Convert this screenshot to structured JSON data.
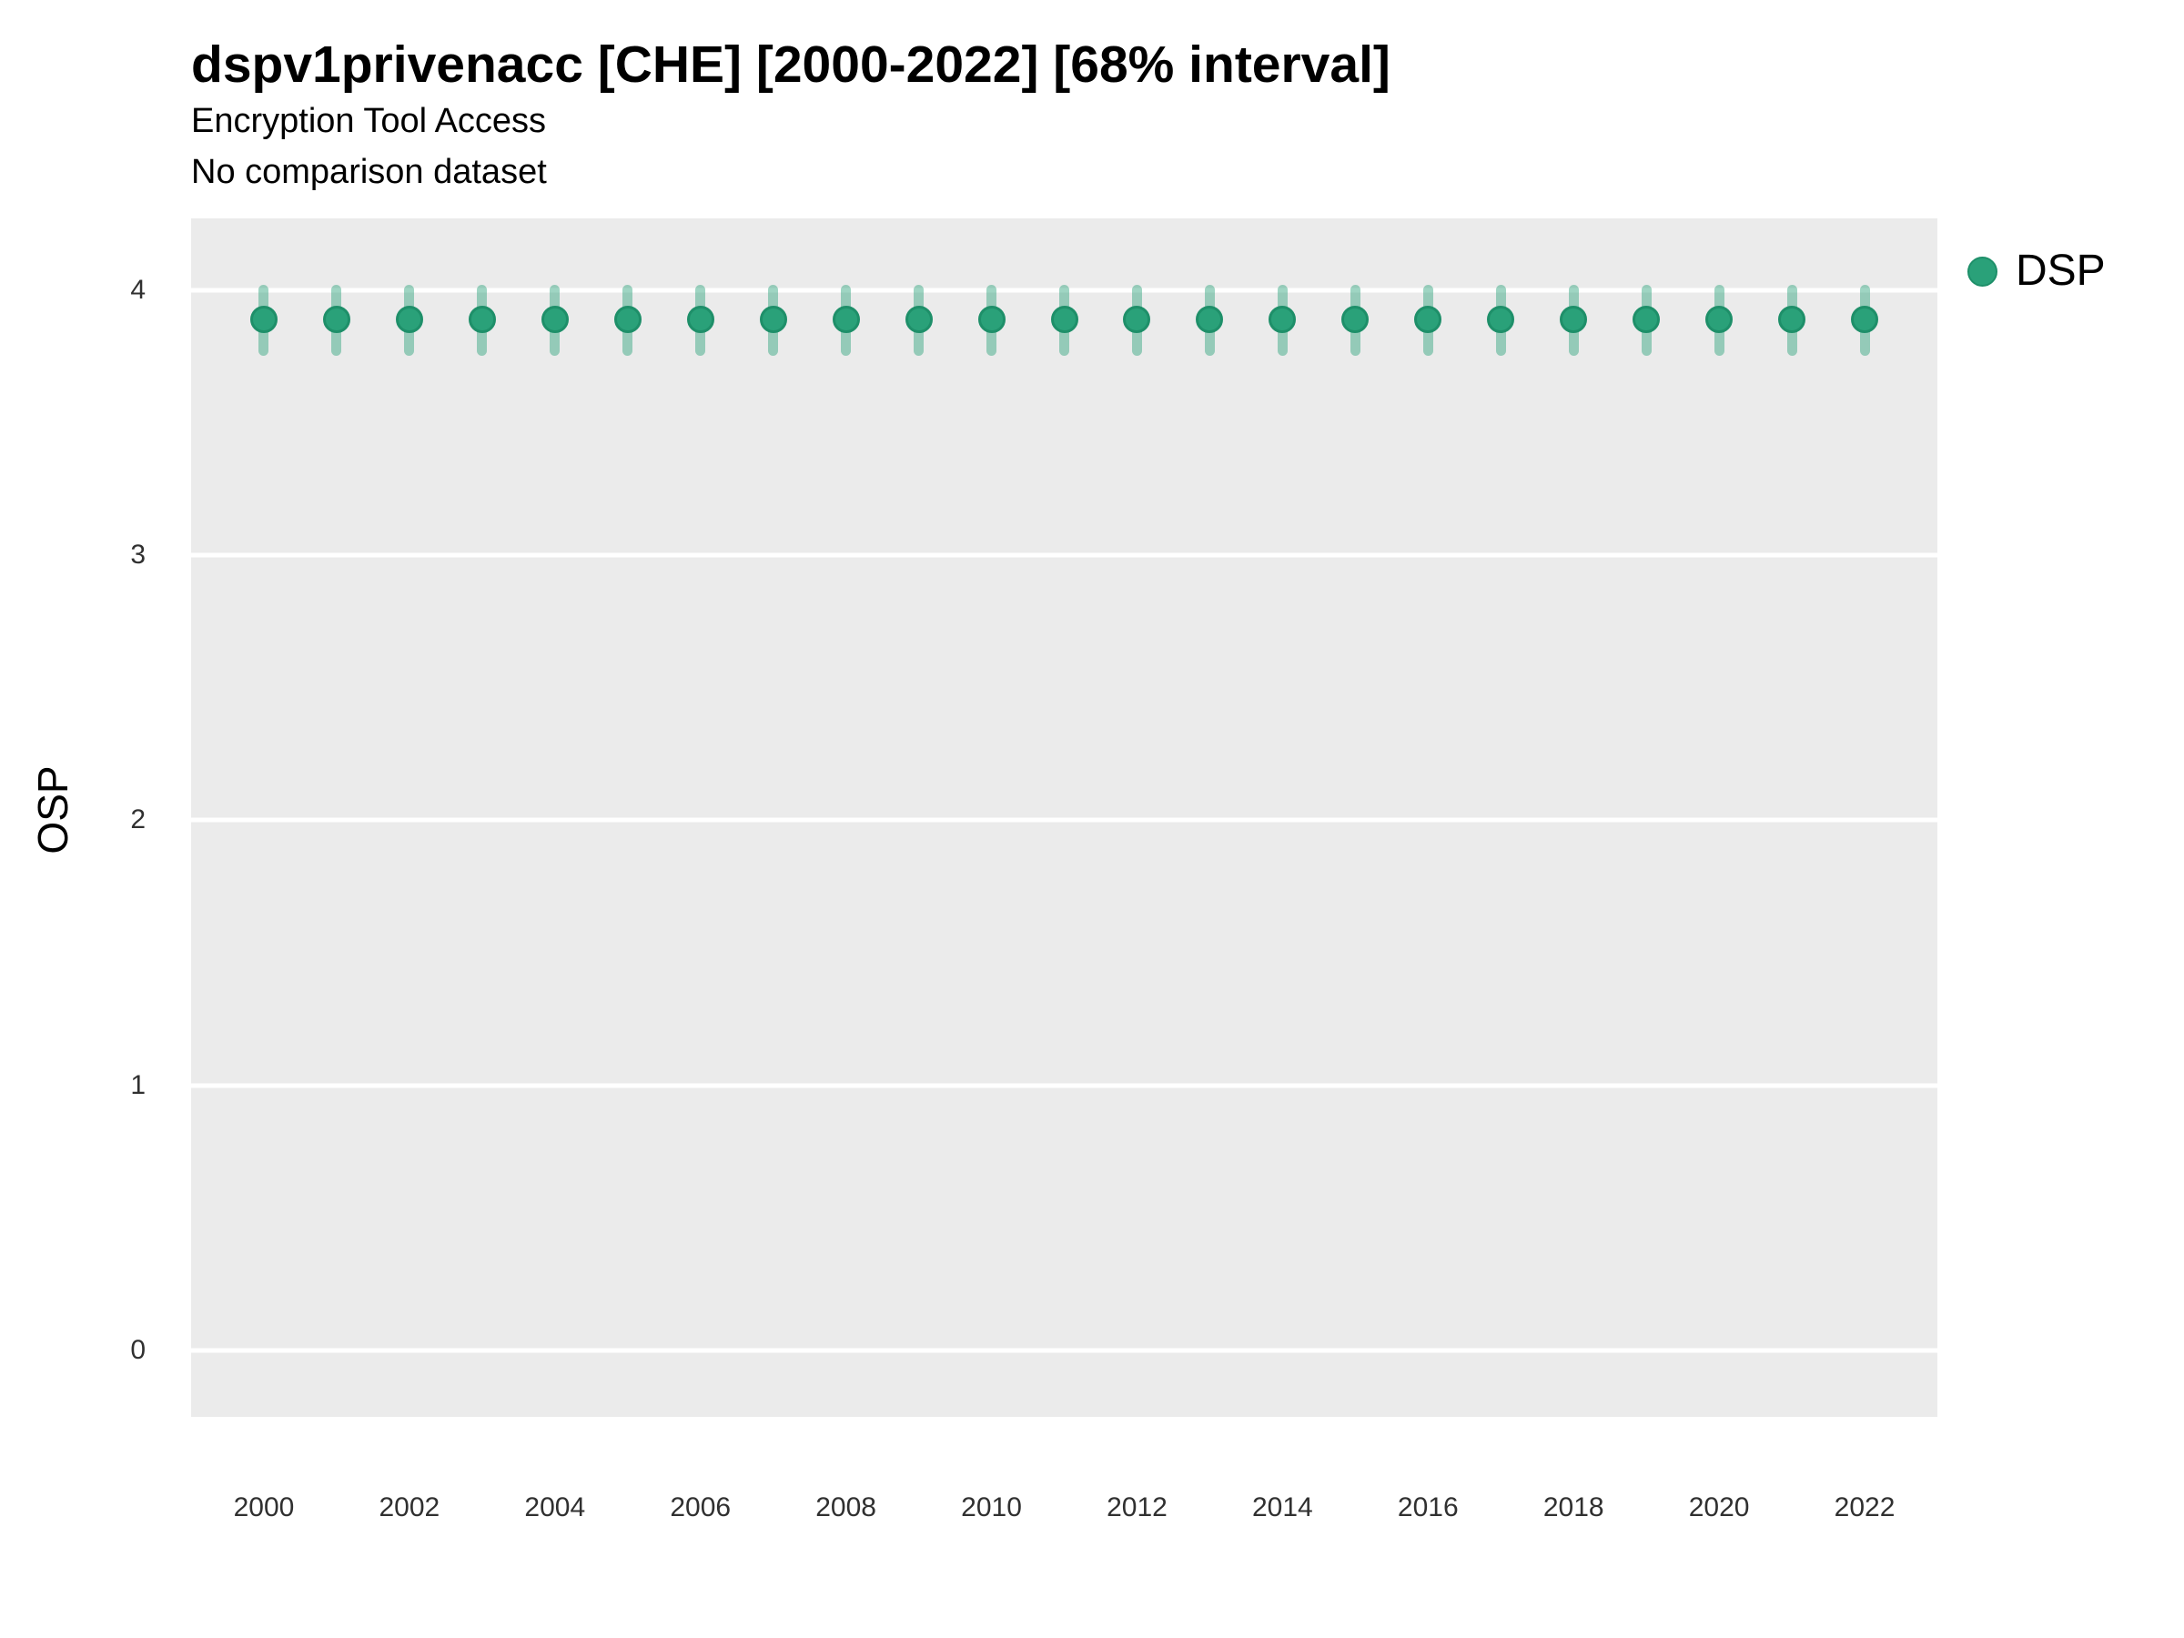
{
  "header": {
    "title": "dspv1privenacc [CHE] [2000-2022] [68% interval]",
    "subtitle": "Encryption Tool Access",
    "caption": "No comparison dataset"
  },
  "legend": {
    "position": "right-top",
    "items": [
      {
        "label": "DSP",
        "marker": "circle-icon",
        "color": "#2AA179"
      }
    ]
  },
  "colors": {
    "panel_bg": "#EBEBEB",
    "gridline": "#FFFFFF",
    "point_fill": "#2AA179",
    "point_stroke": "#1E8F69",
    "interval_fill": "rgba(42,161,121,0.45)",
    "title_text": "#000000",
    "axis_text": "#303030"
  },
  "chart_data": {
    "type": "scatter",
    "title": "dspv1privenacc [CHE] [2000-2022] [68% interval]",
    "subtitle": "Encryption Tool Access",
    "caption": "No comparison dataset",
    "xlabel": "",
    "ylabel": "OSP",
    "xlim": [
      1999,
      2023
    ],
    "ylim": [
      -0.25,
      4.27
    ],
    "x_ticks": [
      2000,
      2002,
      2004,
      2006,
      2008,
      2010,
      2012,
      2014,
      2016,
      2018,
      2020,
      2022
    ],
    "y_ticks": [
      0,
      1,
      2,
      3,
      4
    ],
    "grid": "horizontal-major-only",
    "legend_position": "right-top",
    "interval": "68%",
    "series": [
      {
        "name": "DSP",
        "color": "#2AA179",
        "x": [
          2000,
          2001,
          2002,
          2003,
          2004,
          2005,
          2006,
          2007,
          2008,
          2009,
          2010,
          2011,
          2012,
          2013,
          2014,
          2015,
          2016,
          2017,
          2018,
          2019,
          2020,
          2021,
          2022
        ],
        "y": [
          3.89,
          3.89,
          3.89,
          3.89,
          3.89,
          3.89,
          3.89,
          3.89,
          3.89,
          3.89,
          3.89,
          3.89,
          3.89,
          3.89,
          3.89,
          3.89,
          3.89,
          3.89,
          3.89,
          3.89,
          3.89,
          3.89,
          3.89
        ],
        "y_lo": [
          3.75,
          3.75,
          3.75,
          3.75,
          3.75,
          3.75,
          3.75,
          3.75,
          3.75,
          3.75,
          3.75,
          3.75,
          3.75,
          3.75,
          3.75,
          3.75,
          3.75,
          3.75,
          3.75,
          3.75,
          3.75,
          3.75,
          3.75
        ],
        "y_hi": [
          4.02,
          4.02,
          4.02,
          4.02,
          4.02,
          4.02,
          4.02,
          4.02,
          4.02,
          4.02,
          4.02,
          4.02,
          4.02,
          4.02,
          4.02,
          4.02,
          4.02,
          4.02,
          4.02,
          4.02,
          4.02,
          4.02,
          4.02
        ]
      }
    ]
  }
}
